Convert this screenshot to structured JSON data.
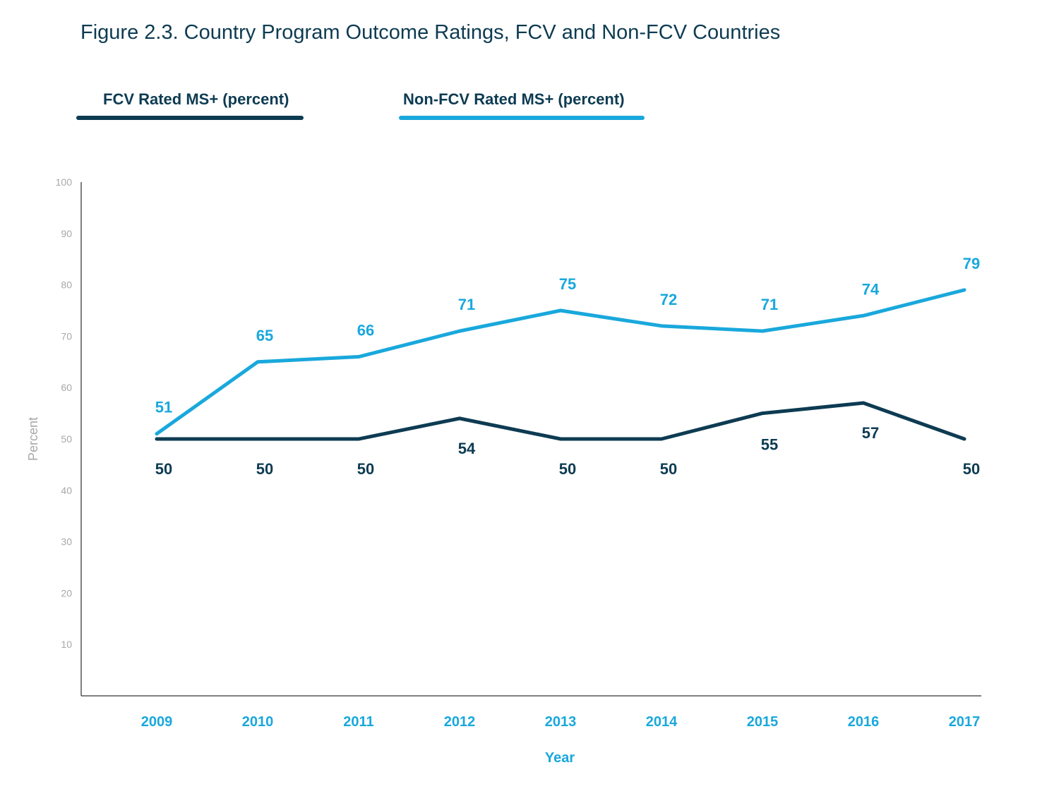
{
  "title": "Figure 2.3. Country Program Outcome Ratings, FCV and Non-FCV Countries",
  "colors": {
    "fcv": "#0d3b52",
    "nonfcv": "#19a8dc",
    "axis": "#555555",
    "tick": "#a8a8a8",
    "xtick": "#19a8dc"
  },
  "chart_data": {
    "type": "line",
    "x": [
      "2009",
      "2010",
      "2011",
      "2012",
      "2013",
      "2014",
      "2015",
      "2016",
      "2017"
    ],
    "series": [
      {
        "name": "FCV  Rated MS+ (percent)",
        "values": [
          50,
          50,
          50,
          54,
          50,
          50,
          55,
          57,
          50
        ]
      },
      {
        "name": "Non-FCV  Rated MS+ (percent)",
        "values": [
          51,
          65,
          66,
          71,
          75,
          72,
          71,
          74,
          79
        ]
      }
    ],
    "xlabel": "Year",
    "ylabel": "Percent",
    "ylim": [
      0,
      100
    ],
    "yticks": [
      10,
      20,
      30,
      40,
      50,
      60,
      70,
      80,
      90,
      100
    ],
    "legend": "top-left",
    "grid": false
  }
}
